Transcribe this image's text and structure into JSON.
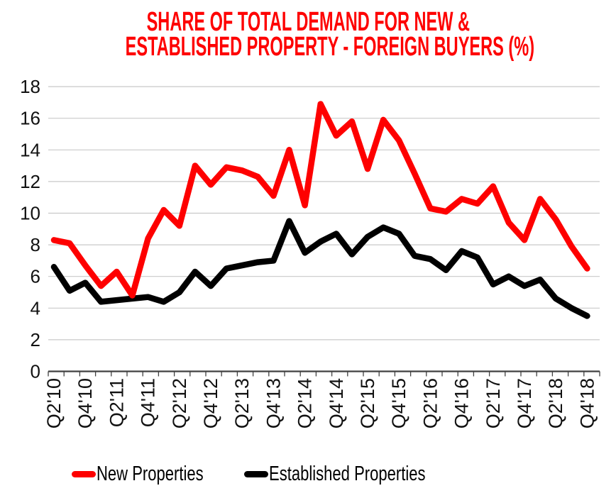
{
  "title": {
    "line1": "SHARE OF TOTAL DEMAND FOR NEW &",
    "line2": "ESTABLISHED PROPERTY - FOREIGN BUYERS (%)"
  },
  "colors": {
    "title": "#fe0000",
    "new_properties": "#fe0000",
    "established_properties": "#000000",
    "gridline": "#c9c9c9",
    "axis": "#404040",
    "tick_label": "#111111"
  },
  "legend": [
    {
      "label": "New Properties",
      "color": "#fe0000"
    },
    {
      "label": "Established Properties",
      "color": "#000000"
    }
  ],
  "chart_data": {
    "type": "line",
    "title": "SHARE OF TOTAL DEMAND FOR NEW & ESTABLISHED PROPERTY - FOREIGN BUYERS (%)",
    "xlabel": "",
    "ylabel": "",
    "ylim": [
      0,
      18
    ],
    "y_ticks": [
      0,
      2,
      4,
      6,
      8,
      10,
      12,
      14,
      16,
      18
    ],
    "grid": true,
    "legend_position": "bottom",
    "x_tick_every": 2,
    "x_tick_labels": [
      "Q2'10",
      "Q4'10",
      "Q2'11",
      "Q4'11",
      "Q2'12",
      "Q4'12",
      "Q2'13",
      "Q4'13",
      "Q2'14",
      "Q4'14",
      "Q2'15",
      "Q4'15",
      "Q2'16",
      "Q4'16",
      "Q2'17",
      "Q4'17",
      "Q2'18",
      "Q4'18"
    ],
    "categories": [
      "Q2'10",
      "Q3'10",
      "Q4'10",
      "Q1'11",
      "Q2'11",
      "Q3'11",
      "Q4'11",
      "Q1'12",
      "Q2'12",
      "Q3'12",
      "Q4'12",
      "Q1'13",
      "Q2'13",
      "Q3'13",
      "Q4'13",
      "Q1'14",
      "Q2'14",
      "Q3'14",
      "Q4'14",
      "Q1'15",
      "Q2'15",
      "Q3'15",
      "Q4'15",
      "Q1'16",
      "Q2'16",
      "Q3'16",
      "Q4'16",
      "Q1'17",
      "Q2'17",
      "Q3'17",
      "Q4'17",
      "Q1'18",
      "Q2'18",
      "Q3'18",
      "Q4'18"
    ],
    "series": [
      {
        "name": "New Properties",
        "color": "#fe0000",
        "values": [
          8.3,
          8.1,
          6.7,
          5.4,
          6.3,
          4.8,
          8.4,
          10.2,
          9.2,
          13.0,
          11.8,
          12.9,
          12.7,
          12.3,
          11.1,
          14.0,
          10.5,
          16.9,
          14.9,
          15.8,
          12.8,
          15.9,
          14.6,
          12.5,
          10.3,
          10.1,
          10.9,
          10.6,
          11.7,
          9.4,
          8.3,
          10.9,
          9.6,
          7.9,
          6.5
        ]
      },
      {
        "name": "Established Properties",
        "color": "#000000",
        "values": [
          6.6,
          5.1,
          5.6,
          4.4,
          4.5,
          4.6,
          4.7,
          4.4,
          5.0,
          6.3,
          5.4,
          6.5,
          6.7,
          6.9,
          7.0,
          9.5,
          7.5,
          8.2,
          8.7,
          7.4,
          8.5,
          9.1,
          8.7,
          7.3,
          7.1,
          6.4,
          7.6,
          7.2,
          5.5,
          6.0,
          5.4,
          5.8,
          4.6,
          4.0,
          3.5
        ]
      }
    ]
  }
}
